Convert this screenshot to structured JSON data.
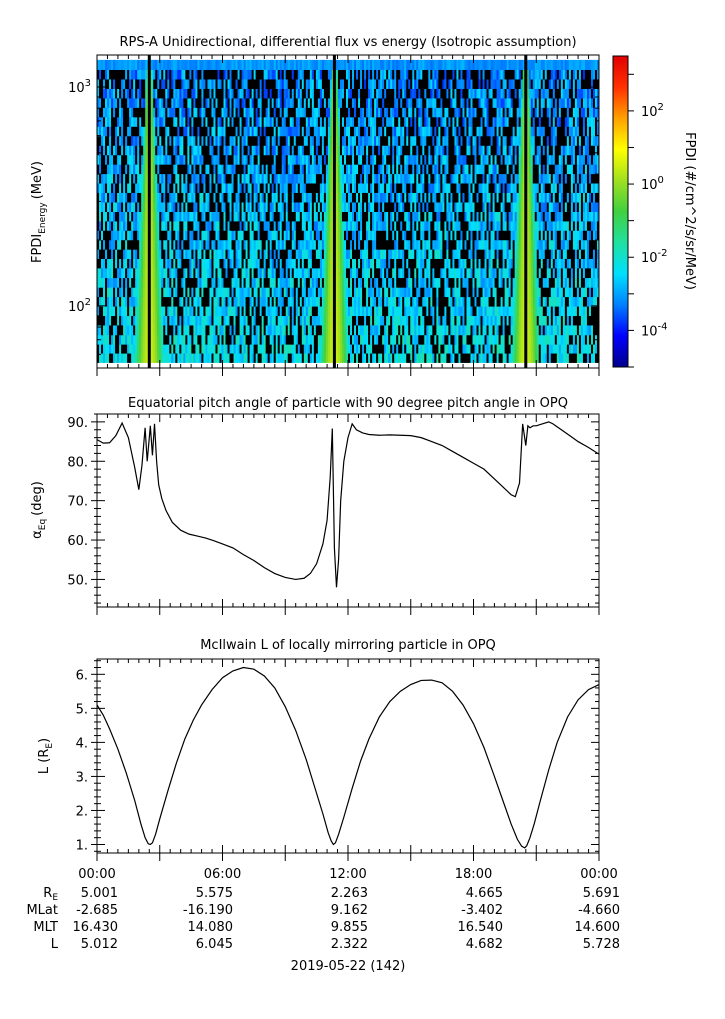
{
  "chart_data": [
    {
      "type": "heatmap",
      "title": "RPS-A Unidirectional, differential flux vs energy (Isotropic assumption)",
      "ylabel_main": "FPDI",
      "ylabel_sub": "Energy",
      "ylabel_unit": "(MeV)",
      "yscale": "log",
      "ylim": [
        52,
        1400
      ],
      "yticks": [
        {
          "value": 100,
          "base": "10",
          "exp": "2"
        },
        {
          "value": 1000,
          "base": "10",
          "exp": "3"
        }
      ],
      "energy_bins_mev": [
        58,
        64,
        70,
        78,
        86,
        95,
        105,
        116,
        128,
        142,
        157,
        173,
        191,
        211,
        233,
        257,
        284,
        314,
        347,
        383,
        423,
        467,
        516,
        570,
        630,
        696,
        769,
        849,
        938,
        1036,
        1145,
        1265
      ],
      "flux_peaks_hours": [
        2.5,
        11.35,
        20.5
      ],
      "colorbar": {
        "label": "FPDI (#/cm^2/s/sr/MeV)",
        "scale": "log",
        "range_log10": [
          -5,
          3.5
        ],
        "ticks": [
          {
            "value": -4,
            "base": "10",
            "exp": "-4"
          },
          {
            "value": -2,
            "base": "10",
            "exp": "-2"
          },
          {
            "value": 0,
            "base": "10",
            "exp": "0"
          },
          {
            "value": 2,
            "base": "10",
            "exp": "2"
          }
        ],
        "colors": [
          "#00008c",
          "#0000ff",
          "#0080ff",
          "#00e0ff",
          "#20e0a0",
          "#40d040",
          "#a0e020",
          "#ffff00",
          "#ffa000",
          "#ff3000",
          "#e00000"
        ]
      }
    },
    {
      "type": "line",
      "title": "Equatorial pitch angle of particle with 90 degree pitch angle in OPQ",
      "ylabel_main": "α",
      "ylabel_sub": "Eq",
      "ylabel_unit": "(deg)",
      "ylim": [
        43,
        92
      ],
      "yticks": [
        50,
        60,
        70,
        80,
        90
      ],
      "yticklabels": [
        "50.",
        "60.",
        "70.",
        "80.",
        "90."
      ],
      "x": [
        0,
        0.3,
        0.6,
        0.9,
        1.2,
        1.5,
        1.8,
        2.0,
        2.15,
        2.3,
        2.4,
        2.55,
        2.65,
        2.75,
        2.85,
        2.95,
        3.1,
        3.3,
        3.6,
        4.0,
        4.4,
        4.8,
        5.2,
        5.6,
        6.0,
        6.5,
        7.0,
        7.5,
        8.0,
        8.5,
        9.0,
        9.5,
        9.9,
        10.2,
        10.5,
        10.8,
        11.0,
        11.15,
        11.25,
        11.35,
        11.45,
        11.55,
        11.65,
        11.8,
        12.0,
        12.2,
        12.4,
        12.7,
        13.0,
        13.5,
        14.0,
        14.5,
        15.0,
        15.5,
        16.0,
        16.5,
        17.0,
        17.5,
        18.0,
        18.5,
        19.0,
        19.4,
        19.8,
        20.0,
        20.2,
        20.35,
        20.5,
        20.6,
        20.7,
        20.85,
        21.0,
        21.3,
        21.6,
        21.8,
        22.2,
        22.6,
        23.0,
        23.5,
        24.0
      ],
      "y": [
        85.5,
        84.6,
        84.7,
        86.5,
        89.7,
        86.0,
        78.5,
        72.8,
        79.0,
        88.5,
        80.0,
        89.0,
        81.5,
        89.5,
        80.0,
        74.0,
        70.5,
        67.5,
        64.5,
        62.5,
        61.5,
        61.0,
        60.5,
        59.8,
        59.0,
        58.0,
        56.3,
        54.8,
        53.0,
        51.5,
        50.5,
        50.0,
        50.3,
        51.5,
        54.0,
        59.0,
        65.0,
        76.0,
        88.3,
        58.0,
        48.0,
        55.0,
        70.0,
        80.0,
        86.0,
        89.5,
        88.0,
        87.2,
        86.8,
        86.6,
        86.7,
        86.6,
        86.5,
        86.0,
        85.0,
        84.0,
        82.5,
        81.0,
        79.5,
        78.0,
        75.5,
        73.5,
        71.5,
        71.0,
        74.5,
        89.5,
        84.0,
        89.0,
        88.5,
        89.0,
        89.0,
        89.5,
        90.0,
        89.5,
        88.0,
        86.5,
        85.0,
        83.5,
        81.8
      ],
      "xlim": [
        0,
        24
      ]
    },
    {
      "type": "line",
      "title": "McIlwain L of locally mirroring particle in OPQ",
      "ylabel_main": "L (R",
      "ylabel_sub": "E",
      "ylabel_unit": ")",
      "ylim": [
        0.75,
        6.45
      ],
      "yticks": [
        1,
        2,
        3,
        4,
        5,
        6
      ],
      "yticklabels": [
        "1.",
        "2.",
        "3.",
        "4.",
        "5.",
        "6."
      ],
      "x": [
        0,
        0.3,
        0.6,
        1.0,
        1.4,
        1.8,
        2.1,
        2.3,
        2.45,
        2.55,
        2.65,
        2.8,
        3.0,
        3.4,
        3.8,
        4.2,
        4.6,
        5.0,
        5.5,
        6.0,
        6.5,
        7.0,
        7.5,
        8.0,
        8.5,
        9.0,
        9.5,
        10.0,
        10.4,
        10.8,
        11.05,
        11.2,
        11.3,
        11.4,
        11.55,
        11.8,
        12.2,
        12.6,
        13.0,
        13.5,
        14.0,
        14.5,
        15.0,
        15.5,
        16.0,
        16.5,
        17.0,
        17.5,
        18.0,
        18.5,
        19.0,
        19.4,
        19.8,
        20.1,
        20.3,
        20.45,
        20.55,
        20.7,
        20.9,
        21.2,
        21.6,
        22.0,
        22.5,
        23.0,
        23.5,
        24.0
      ],
      "y": [
        5.1,
        4.8,
        4.4,
        3.8,
        3.1,
        2.3,
        1.6,
        1.2,
        1.02,
        1.0,
        1.05,
        1.3,
        1.75,
        2.6,
        3.4,
        4.1,
        4.65,
        5.1,
        5.55,
        5.9,
        6.1,
        6.2,
        6.15,
        5.95,
        5.6,
        5.05,
        4.35,
        3.5,
        2.7,
        1.9,
        1.35,
        1.1,
        1.0,
        1.05,
        1.3,
        1.8,
        2.65,
        3.45,
        4.1,
        4.75,
        5.2,
        5.5,
        5.7,
        5.82,
        5.83,
        5.75,
        5.5,
        5.1,
        4.55,
        3.85,
        3.0,
        2.3,
        1.6,
        1.15,
        0.95,
        0.9,
        0.97,
        1.2,
        1.6,
        2.3,
        3.2,
        4.0,
        4.75,
        5.25,
        5.55,
        5.7
      ],
      "xlim": [
        0,
        24
      ]
    }
  ],
  "xaxis": {
    "tick_hours": [
      0,
      6,
      12,
      18,
      24
    ],
    "tick_labels": [
      "00:00",
      "06:00",
      "12:00",
      "18:00",
      "00:00"
    ],
    "date_label": "2019-05-22 (142)"
  },
  "ephemeris": {
    "rows": [
      {
        "label": "R",
        "label_sub": "E",
        "values": [
          "5.001",
          "5.575",
          "2.263",
          "4.665",
          "5.691"
        ]
      },
      {
        "label": "MLat",
        "label_sub": "",
        "values": [
          "-2.685",
          "-16.190",
          "9.162",
          "-3.402",
          "-4.660"
        ]
      },
      {
        "label": "MLT",
        "label_sub": "",
        "values": [
          "16.430",
          "14.080",
          "9.855",
          "16.540",
          "14.600"
        ]
      },
      {
        "label": "L",
        "label_sub": "",
        "values": [
          "5.012",
          "6.045",
          "2.322",
          "4.682",
          "5.728"
        ]
      }
    ]
  }
}
